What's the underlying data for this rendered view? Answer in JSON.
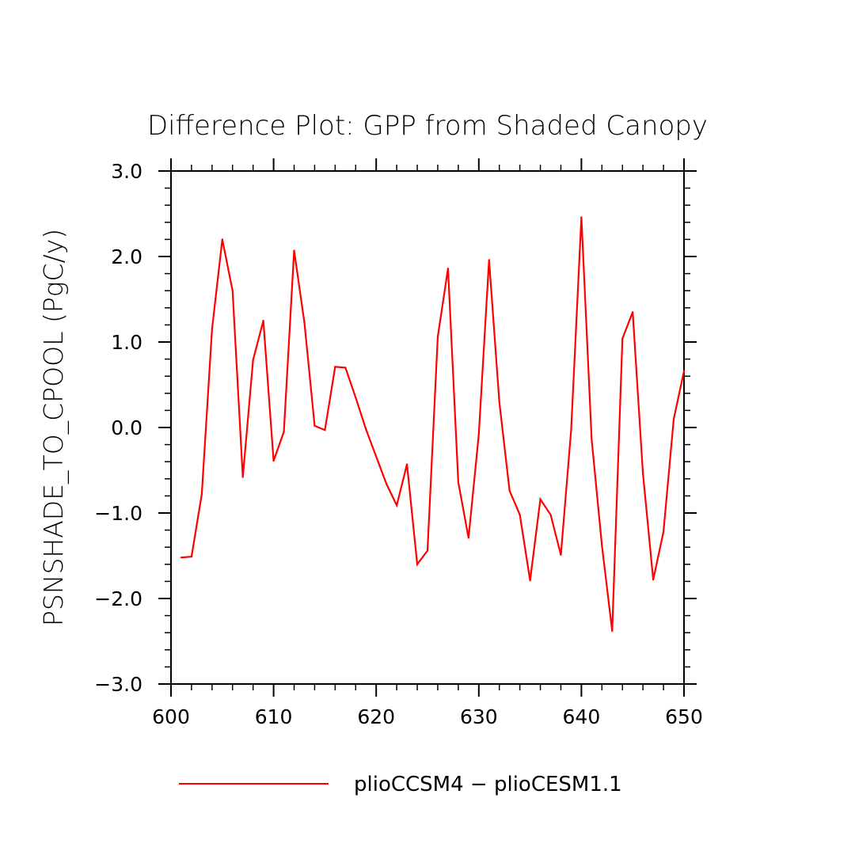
{
  "chart_data": {
    "type": "line",
    "title": "Difference Plot: GPP from Shaded Canopy",
    "xlabel": "",
    "ylabel": "PSNSHADE_TO_CPOOL  (PgC/y)",
    "xlim": [
      600,
      650
    ],
    "ylim": [
      -3.0,
      3.0
    ],
    "x_ticks": [
      600,
      610,
      620,
      630,
      640,
      650
    ],
    "y_ticks": [
      3.0,
      2.0,
      1.0,
      0.0,
      -1.0,
      -2.0,
      -3.0
    ],
    "x_tick_labels": [
      "600",
      "610",
      "620",
      "630",
      "640",
      "650"
    ],
    "y_tick_labels": [
      "3.0",
      "2.0",
      "1.0",
      "0.0",
      "−1.0",
      "−2.0",
      "−3.0"
    ],
    "legend_position": "bottom",
    "series": [
      {
        "name": "plioCCSM4 − plioCESM1.1",
        "color": "#ff0000",
        "x": [
          601,
          602,
          603,
          604,
          605,
          606,
          607,
          608,
          609,
          610,
          611,
          612,
          613,
          614,
          615,
          616,
          617,
          618,
          619,
          620,
          621,
          622,
          623,
          624,
          625,
          626,
          627,
          628,
          629,
          630,
          631,
          632,
          633,
          634,
          635,
          636,
          637,
          638,
          639,
          640,
          641,
          642,
          643,
          644,
          645,
          646,
          647,
          648,
          649,
          650
        ],
        "values": [
          -1.52,
          -1.51,
          -0.78,
          1.15,
          2.2,
          1.6,
          -0.58,
          0.79,
          1.25,
          -0.39,
          -0.05,
          2.07,
          1.23,
          0.02,
          -0.03,
          0.71,
          0.7,
          0.35,
          -0.02,
          -0.34,
          -0.66,
          -0.91,
          -0.43,
          -1.6,
          -1.44,
          1.06,
          1.86,
          -0.64,
          -1.29,
          -0.08,
          1.96,
          0.3,
          -0.74,
          -1.02,
          -1.79,
          -0.84,
          -1.02,
          -1.49,
          -0.03,
          2.46,
          -0.14,
          -1.38,
          -2.38,
          1.04,
          1.35,
          -0.54,
          -1.78,
          -1.22,
          0.1,
          0.66
        ]
      }
    ]
  }
}
